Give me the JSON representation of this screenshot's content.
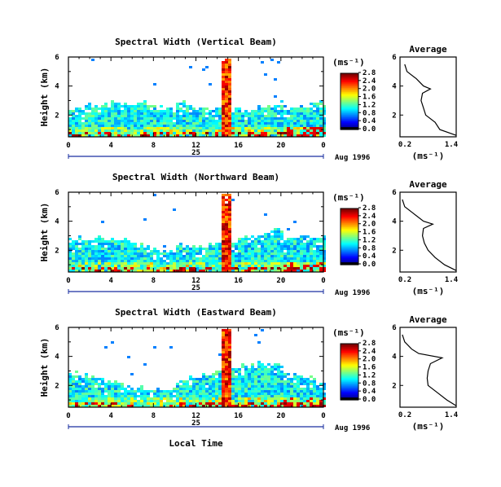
{
  "figure": {
    "xlabel": "Local Time",
    "date_label": "Aug 1996",
    "day_label": "25",
    "colorbar_unit": "(ms⁻¹)",
    "avg_title": "Average",
    "avg_xlabel": "(ms⁻¹)"
  },
  "chart_data": [
    {
      "type": "heatmap",
      "title": "Spectral Width (Vertical Beam)",
      "xlabel": "",
      "ylabel": "Height (km)",
      "xlim": [
        0,
        24
      ],
      "ylim": [
        0.5,
        6
      ],
      "x_ticks": [
        "0",
        "4",
        "8",
        "12",
        "16",
        "20",
        "0"
      ],
      "y_ticks": [
        "2",
        "4",
        "6"
      ],
      "colorbar": {
        "label": "(ms⁻¹)",
        "ticks": [
          "0.0",
          "0.4",
          "0.8",
          "1.2",
          "1.6",
          "2.0",
          "2.4",
          "2.8"
        ]
      },
      "profile": {
        "title": "Average",
        "xlabel": "(ms⁻¹)",
        "xlim": [
          0.2,
          1.4
        ],
        "x_ticks": [
          "0.2",
          "1.4"
        ],
        "y_ticks": [
          "2",
          "4",
          "6"
        ],
        "heights": [
          0.6,
          1.0,
          1.5,
          2.0,
          2.5,
          3.0,
          3.5,
          3.8,
          4.0,
          4.5,
          5.0,
          5.5
        ],
        "values": [
          1.4,
          1.05,
          0.95,
          0.75,
          0.7,
          0.65,
          0.68,
          0.85,
          0.7,
          0.55,
          0.35,
          0.3
        ]
      }
    },
    {
      "type": "heatmap",
      "title": "Spectral Width (Northward Beam)",
      "xlabel": "",
      "ylabel": "Height (km)",
      "xlim": [
        0,
        24
      ],
      "ylim": [
        0.5,
        6
      ],
      "x_ticks": [
        "0",
        "4",
        "8",
        "12",
        "16",
        "20",
        "0"
      ],
      "y_ticks": [
        "2",
        "4",
        "6"
      ],
      "colorbar": {
        "label": "(ms⁻¹)",
        "ticks": [
          "0.0",
          "0.4",
          "0.8",
          "1.2",
          "1.6",
          "2.0",
          "2.4",
          "2.8"
        ]
      },
      "profile": {
        "title": "Average",
        "xlabel": "(ms⁻¹)",
        "xlim": [
          0.2,
          1.4
        ],
        "x_ticks": [
          "0.2",
          "1.4"
        ],
        "y_ticks": [
          "2",
          "4",
          "6"
        ],
        "heights": [
          0.6,
          1.0,
          1.5,
          2.0,
          2.5,
          3.0,
          3.5,
          3.8,
          4.0,
          4.5,
          5.0,
          5.5
        ],
        "values": [
          1.4,
          1.15,
          0.95,
          0.8,
          0.72,
          0.68,
          0.7,
          0.9,
          0.7,
          0.5,
          0.3,
          0.25
        ]
      }
    },
    {
      "type": "heatmap",
      "title": "Spectral Width (Eastward Beam)",
      "xlabel": "Local Time",
      "ylabel": "Height (km)",
      "xlim": [
        0,
        24
      ],
      "ylim": [
        0.5,
        6
      ],
      "x_ticks": [
        "0",
        "4",
        "8",
        "12",
        "16",
        "20",
        "0"
      ],
      "y_ticks": [
        "2",
        "4",
        "6"
      ],
      "colorbar": {
        "label": "(ms⁻¹)",
        "ticks": [
          "0.0",
          "0.4",
          "0.8",
          "1.2",
          "1.6",
          "2.0",
          "2.4",
          "2.8"
        ]
      },
      "profile": {
        "title": "Average",
        "xlabel": "(ms⁻¹)",
        "xlim": [
          0.2,
          1.4
        ],
        "x_ticks": [
          "0.2",
          "1.4"
        ],
        "y_ticks": [
          "2",
          "4",
          "6"
        ],
        "heights": [
          0.6,
          1.0,
          1.5,
          2.0,
          2.5,
          3.0,
          3.5,
          3.9,
          4.2,
          4.5,
          5.0,
          5.5
        ],
        "values": [
          1.4,
          1.2,
          1.0,
          0.8,
          0.78,
          0.8,
          0.85,
          1.1,
          0.6,
          0.45,
          0.3,
          0.25
        ]
      }
    }
  ]
}
